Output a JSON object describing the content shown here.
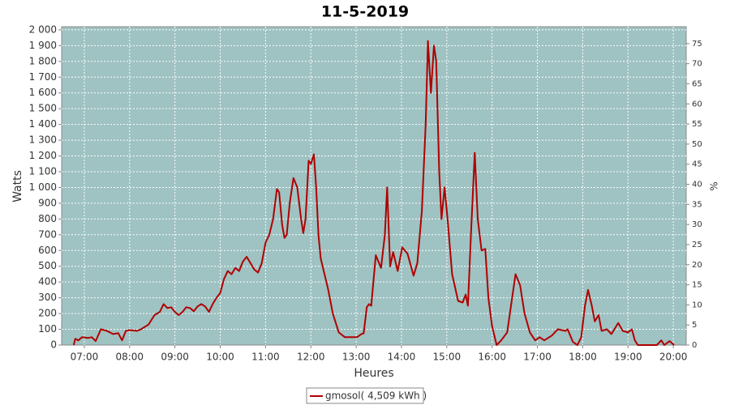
{
  "chart_data": {
    "type": "line",
    "title": "11-5-2019",
    "xlabel": "Heures",
    "ylabel": "Watts",
    "y2label": "%",
    "xlim": [
      "06:30",
      "20:17"
    ],
    "xticks": [
      "07:00",
      "08:00",
      "09:00",
      "10:00",
      "11:00",
      "12:00",
      "13:00",
      "14:00",
      "15:00",
      "16:00",
      "17:00",
      "18:00",
      "19:00",
      "20:00"
    ],
    "ylim": [
      0,
      2020
    ],
    "yticks": [
      0,
      100,
      200,
      300,
      400,
      500,
      600,
      700,
      800,
      900,
      {
        "value": 1000,
        "label": "1 000"
      },
      {
        "value": 1100,
        "label": "1 100"
      },
      {
        "value": 1200,
        "label": "1 200"
      },
      {
        "value": 1300,
        "label": "1 300"
      },
      {
        "value": 1400,
        "label": "1 400"
      },
      {
        "value": 1500,
        "label": "1 500"
      },
      {
        "value": 1600,
        "label": "1 600"
      },
      {
        "value": 1700,
        "label": "1 700"
      },
      {
        "value": 1800,
        "label": "1 800"
      },
      {
        "value": 1900,
        "label": "1 900"
      },
      {
        "value": 2000,
        "label": "2 000"
      }
    ],
    "y2lim": [
      0,
      79.2
    ],
    "y2ticks": [
      0,
      5,
      10,
      15,
      20,
      25,
      30,
      35,
      40,
      45,
      50,
      55,
      60,
      65,
      70,
      75
    ],
    "grid": true,
    "legend": "bottom",
    "x": [
      "06:46",
      "06:48",
      "06:52",
      "06:57",
      "07:05",
      "07:10",
      "07:15",
      "07:22",
      "07:30",
      "07:38",
      "07:45",
      "07:50",
      "07:55",
      "08:00",
      "08:10",
      "08:15",
      "08:25",
      "08:33",
      "08:40",
      "08:45",
      "08:50",
      "08:55",
      "09:00",
      "09:05",
      "09:10",
      "09:15",
      "09:20",
      "09:25",
      "09:30",
      "09:35",
      "09:40",
      "09:45",
      "09:50",
      "09:55",
      "10:00",
      "10:05",
      "10:10",
      "10:15",
      "10:20",
      "10:25",
      "10:30",
      "10:35",
      "10:40",
      "10:45",
      "10:50",
      "10:55",
      "11:00",
      "11:05",
      "11:10",
      "11:15",
      "11:18",
      "11:22",
      "11:25",
      "11:28",
      "11:32",
      "11:37",
      "11:42",
      "11:47",
      "11:50",
      "11:53",
      "11:57",
      "12:00",
      "12:04",
      "12:07",
      "12:10",
      "12:13",
      "12:23",
      "12:29",
      "12:37",
      "12:45",
      "13:01",
      "13:07",
      "13:10",
      "13:14",
      "13:17",
      "13:20",
      "13:26",
      "13:33",
      "13:38",
      "13:41",
      "13:45",
      "13:49",
      "13:55",
      "14:01",
      "14:08",
      "14:16",
      "14:21",
      "14:27",
      "14:32",
      "14:35",
      "14:39",
      "14:43",
      "14:46",
      "14:50",
      "14:53",
      "14:57",
      "15:01",
      "15:07",
      "15:15",
      "15:21",
      "15:25",
      "15:28",
      "15:32",
      "15:37",
      "15:41",
      "15:46",
      "15:51",
      "15:55",
      "16:00",
      "16:06",
      "16:12",
      "16:20",
      "16:25",
      "16:31",
      "16:37",
      "16:43",
      "16:50",
      "16:57",
      "17:03",
      "17:09",
      "17:19",
      "17:27",
      "17:37",
      "17:40",
      "17:47",
      "17:53",
      "17:58",
      "18:03",
      "18:07",
      "18:12",
      "18:16",
      "18:21",
      "18:25",
      "18:32",
      "18:38",
      "18:47",
      "18:53",
      "19:00",
      "19:05",
      "19:09",
      "19:13",
      "19:38",
      "19:44",
      "19:48",
      "19:55",
      "20:01"
    ],
    "series": [
      {
        "name": "gmosol( 4,509 kWh )",
        "color": "#b00000",
        "values": [
          0,
          40,
          30,
          50,
          45,
          50,
          25,
          100,
          90,
          70,
          75,
          30,
          90,
          95,
          90,
          100,
          130,
          190,
          210,
          260,
          235,
          240,
          210,
          190,
          210,
          240,
          235,
          215,
          245,
          260,
          245,
          210,
          260,
          300,
          330,
          420,
          470,
          450,
          490,
          470,
          530,
          560,
          520,
          480,
          460,
          520,
          650,
          700,
          800,
          990,
          970,
          760,
          680,
          700,
          900,
          1060,
          1000,
          800,
          710,
          800,
          1170,
          1150,
          1210,
          1000,
          700,
          550,
          350,
          200,
          80,
          50,
          50,
          70,
          75,
          240,
          260,
          250,
          570,
          490,
          700,
          1000,
          500,
          590,
          470,
          620,
          580,
          440,
          520,
          850,
          1400,
          1930,
          1600,
          1900,
          1800,
          1100,
          800,
          1000,
          800,
          450,
          280,
          270,
          320,
          250,
          700,
          1220,
          800,
          600,
          610,
          300,
          120,
          0,
          30,
          80,
          250,
          450,
          380,
          200,
          80,
          30,
          50,
          30,
          60,
          100,
          90,
          100,
          20,
          0,
          50,
          250,
          350,
          250,
          150,
          190,
          90,
          100,
          70,
          140,
          90,
          80,
          100,
          30,
          0,
          0,
          30,
          0,
          25,
          0
        ]
      }
    ]
  }
}
